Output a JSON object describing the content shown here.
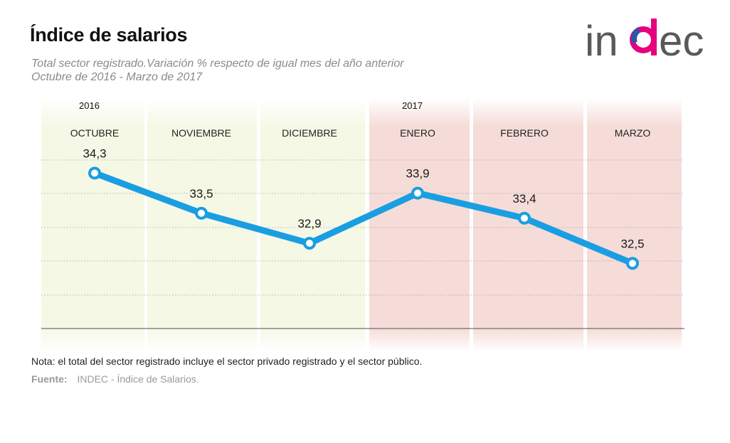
{
  "header": {
    "title": "Índice de salarios",
    "subtitle_line1": "Total sector registrado.Variación % respecto de igual mes del año anterior",
    "subtitle_line2": "Octubre de 2016 - Marzo de 2017"
  },
  "logo": {
    "text": "indec",
    "name": "indec-logo"
  },
  "chart_data": {
    "type": "line",
    "categories": [
      "OCTUBRE",
      "NOVIEMBRE",
      "DICIEMBRE",
      "ENERO",
      "FEBRERO",
      "MARZO"
    ],
    "year_labels": [
      "2016",
      "",
      "",
      "2017",
      "",
      ""
    ],
    "values": [
      34.3,
      33.5,
      32.9,
      33.9,
      33.4,
      32.5
    ],
    "value_labels": [
      "34,3",
      "33,5",
      "32,9",
      "33,9",
      "33,4",
      "32,5"
    ],
    "band_colors": [
      "#f6f8e6",
      "#f6f8e6",
      "#f6f8e6",
      "#f5dcd8",
      "#f5dcd8",
      "#f5dcd8"
    ],
    "line_color": "#1a9ee2",
    "grid": true,
    "ylim": [
      31.2,
      35.2
    ]
  },
  "footer": {
    "note": "Nota: el total del sector registrado incluye el sector privado registrado y el sector público.",
    "source_label": "Fuente:",
    "source_text": "INDEC - Índice de Salarios."
  }
}
